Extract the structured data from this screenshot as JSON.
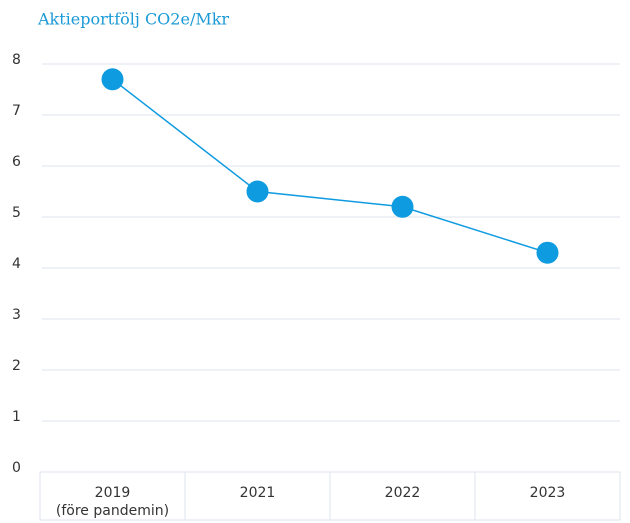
{
  "chart_data": {
    "type": "line",
    "title": "Aktieportfölj CO2e/Mkr",
    "categories": [
      "2019\n(före pandemin)",
      "2021",
      "2022",
      "2023"
    ],
    "series": [
      {
        "name": "Aktieportfölj CO2e/Mkr",
        "color": "#0f9be0",
        "values": [
          7.7,
          5.5,
          5.2,
          4.3
        ]
      }
    ],
    "ylim": [
      0,
      8
    ],
    "yticks": [
      0,
      1,
      2,
      3,
      4,
      5,
      6,
      7,
      8
    ],
    "grid": true
  }
}
